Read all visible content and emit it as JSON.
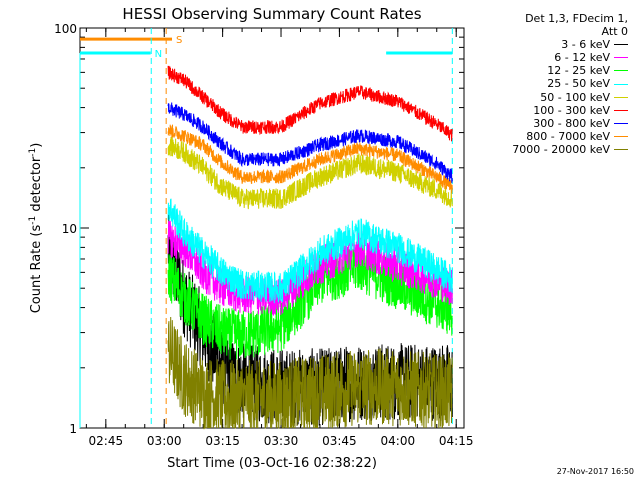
{
  "chart_data": {
    "type": "line",
    "title": "HESSI Observing Summary Count Rates",
    "xlabel": "Start Time (03-Oct-16 02:38:22)",
    "ylabel": "Count Rate (s⁻¹ detector⁻¹)",
    "ylabel_main": "Count Rate (s",
    "ylabel_sup1": "-1",
    "ylabel_mid": " detector",
    "ylabel_sup2": "-1",
    "ylabel_end": ")",
    "y_scale": "log",
    "ylim": [
      1,
      100
    ],
    "xlim": [
      "02:38:22",
      "04:17:00"
    ],
    "x_tick_labels": [
      "02:45",
      "03:00",
      "03:15",
      "03:30",
      "03:45",
      "04:00",
      "04:15"
    ],
    "y_tick_labels": [
      "1",
      "10",
      "100"
    ],
    "legend_header": [
      "Det 1,3, FDecim 1,",
      "Att 0"
    ],
    "legend_placement": "outside-right",
    "series": [
      {
        "name": "3 - 6 keV",
        "color": "#000000",
        "x": [
          "03:01",
          "03:05",
          "03:10",
          "03:15",
          "03:20",
          "03:30",
          "03:40",
          "03:50",
          "04:00",
          "04:10",
          "04:14"
        ],
        "y": [
          8,
          4.5,
          3,
          2,
          1.7,
          1.6,
          1.6,
          1.7,
          1.7,
          1.7,
          1.7
        ]
      },
      {
        "name": "6 - 12 keV",
        "color": "#ff00ff",
        "x": [
          "03:01",
          "03:05",
          "03:10",
          "03:15",
          "03:20",
          "03:30",
          "03:40",
          "03:50",
          "04:00",
          "04:10",
          "04:14"
        ],
        "y": [
          9,
          8,
          6,
          5,
          4.6,
          4.5,
          6.5,
          8,
          6.5,
          5.5,
          5
        ]
      },
      {
        "name": "12 - 25 keV",
        "color": "#00ff00",
        "x": [
          "03:01",
          "03:05",
          "03:10",
          "03:15",
          "03:20",
          "03:30",
          "03:40",
          "03:50",
          "04:00",
          "04:10",
          "04:14"
        ],
        "y": [
          6,
          4.5,
          3.5,
          3,
          2.9,
          3.2,
          5.5,
          6.5,
          5.2,
          4.2,
          3.8
        ]
      },
      {
        "name": "25 - 50 keV",
        "color": "#00ffff",
        "x": [
          "03:01",
          "03:05",
          "03:10",
          "03:15",
          "03:20",
          "03:30",
          "03:40",
          "03:50",
          "04:00",
          "04:10",
          "04:14"
        ],
        "y": [
          13,
          9.5,
          7.5,
          6,
          5.2,
          5,
          7.5,
          9.5,
          8,
          6.2,
          5.5
        ]
      },
      {
        "name": "50 - 100 keV",
        "color": "#d0d000",
        "x": [
          "03:01",
          "03:05",
          "03:10",
          "03:15",
          "03:20",
          "03:30",
          "03:40",
          "03:50",
          "04:00",
          "04:10",
          "04:14"
        ],
        "y": [
          26,
          24,
          20,
          16,
          14,
          14,
          18,
          21,
          19,
          15.5,
          14
        ]
      },
      {
        "name": "100 - 300 keV",
        "color": "#ff0000",
        "x": [
          "03:01",
          "03:05",
          "03:10",
          "03:15",
          "03:20",
          "03:30",
          "03:40",
          "03:50",
          "04:00",
          "04:10",
          "04:14"
        ],
        "y": [
          60,
          55,
          45,
          37,
          32,
          32,
          42,
          48,
          43,
          33,
          29
        ]
      },
      {
        "name": "300 - 800 keV",
        "color": "#0000ff",
        "x": [
          "03:01",
          "03:05",
          "03:10",
          "03:15",
          "03:20",
          "03:30",
          "03:40",
          "03:50",
          "04:00",
          "04:10",
          "04:14"
        ],
        "y": [
          40,
          37,
          32,
          26,
          22,
          22,
          26,
          29,
          27,
          21,
          18
        ]
      },
      {
        "name": "800 - 7000 keV",
        "color": "#ff8c00",
        "x": [
          "03:01",
          "03:05",
          "03:10",
          "03:15",
          "03:20",
          "03:30",
          "03:40",
          "03:50",
          "04:00",
          "04:10",
          "04:14"
        ],
        "y": [
          31,
          29,
          26,
          21,
          18,
          18,
          22,
          25,
          23,
          18,
          16
        ]
      },
      {
        "name": "7000 - 20000 keV",
        "color": "#808000",
        "x": [
          "03:01",
          "03:05",
          "03:10",
          "03:15",
          "03:20",
          "03:30",
          "03:40",
          "03:50",
          "04:00",
          "04:10",
          "04:14"
        ],
        "y": [
          2.5,
          1.8,
          1.5,
          1.4,
          1.4,
          1.4,
          1.5,
          1.6,
          1.6,
          1.5,
          1.5
        ]
      }
    ],
    "flags": [
      {
        "label": "S",
        "color": "#ff8c00",
        "start": "02:38:22",
        "end": "03:02:00",
        "level": 88,
        "marker": "03:00:30"
      },
      {
        "label": "N",
        "color": "#00ffff",
        "start": "02:38:22",
        "end": "02:56:30",
        "level": 75,
        "marker": "02:56:40"
      },
      {
        "label": "",
        "color": "#00ffff",
        "start": "03:57:00",
        "end": "04:14:00",
        "level": 75,
        "marker": "04:14:00"
      }
    ],
    "grid": false
  },
  "footer": {
    "date_stamp": "27-Nov-2017 16:50"
  },
  "colors": {
    "background": "#ffffff",
    "axis": "#000000"
  }
}
